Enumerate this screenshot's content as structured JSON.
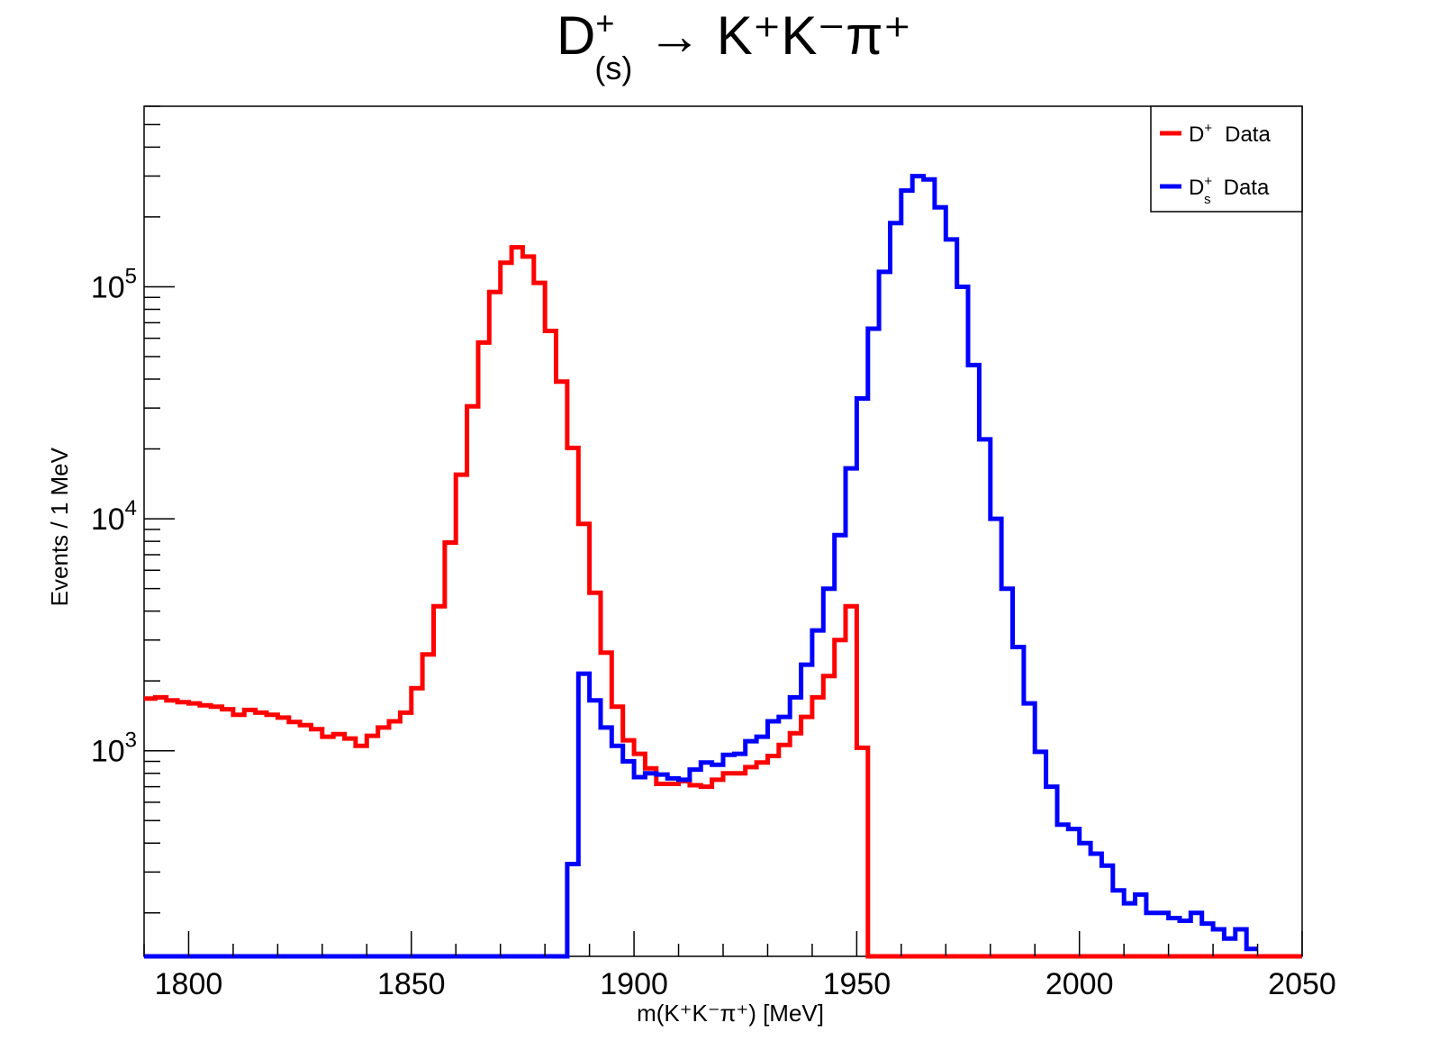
{
  "chart_data": {
    "type": "line",
    "subtype": "step-histogram",
    "title": {
      "main": "D",
      "sup": "+",
      "sub": "(s)",
      "rest": "→ K⁺K⁻π⁺"
    },
    "xlabel": "m(K⁺K⁻π⁺) [MeV]",
    "ylabel": "Events / 1 MeV",
    "xlim": [
      1790,
      2050
    ],
    "ylim": [
      130,
      600000
    ],
    "yscale": "log",
    "grid": false,
    "legend_position": "top-right",
    "x_ticks": [
      "1800",
      "1850",
      "1900",
      "1950",
      "2000",
      "2050"
    ],
    "y_ticks": [
      {
        "base": "10",
        "exp": "3",
        "value": 1000
      },
      {
        "base": "10",
        "exp": "4",
        "value": 10000
      },
      {
        "base": "10",
        "exp": "5",
        "value": 100000
      }
    ],
    "bin_width": 2.5,
    "series": [
      {
        "name": "D⁺  Data",
        "legend_main": "D",
        "legend_sup": "+",
        "legend_sub": "",
        "legend_rest": "Data",
        "color": "#ff0000",
        "x_start": 1790,
        "values": [
          1680,
          1700,
          1650,
          1620,
          1600,
          1570,
          1550,
          1510,
          1430,
          1500,
          1460,
          1430,
          1390,
          1330,
          1290,
          1240,
          1150,
          1180,
          1130,
          1050,
          1160,
          1260,
          1340,
          1460,
          1860,
          2600,
          4200,
          7900,
          15500,
          30500,
          57500,
          95000,
          127000,
          148000,
          135000,
          104000,
          64500,
          39000,
          20200,
          9500,
          4800,
          2650,
          1550,
          1110,
          970,
          840,
          720,
          720,
          740,
          710,
          700,
          750,
          800,
          800,
          850,
          890,
          950,
          1060,
          1190,
          1400,
          1700,
          2100,
          3000,
          4200,
          1030,
          130,
          130,
          130,
          130,
          130,
          130,
          130,
          130,
          130,
          130,
          130,
          130,
          130,
          130,
          130,
          130,
          130,
          130,
          130,
          130,
          130,
          130,
          130,
          130,
          130,
          130,
          130,
          130,
          130,
          130,
          130,
          130,
          130,
          130,
          130,
          130,
          130,
          130,
          130
        ]
      },
      {
        "name": "Dₛ⁺  Data",
        "legend_main": "D",
        "legend_sup": "+",
        "legend_sub": "s",
        "legend_rest": "Data",
        "color": "#0000ff",
        "x_start": 1790,
        "values": [
          130,
          130,
          130,
          130,
          130,
          130,
          130,
          130,
          130,
          130,
          130,
          130,
          130,
          130,
          130,
          130,
          130,
          130,
          130,
          130,
          130,
          130,
          130,
          130,
          130,
          130,
          130,
          130,
          130,
          130,
          130,
          130,
          130,
          130,
          130,
          130,
          130,
          130,
          325,
          2150,
          1650,
          1260,
          1050,
          900,
          770,
          800,
          790,
          760,
          750,
          830,
          890,
          870,
          960,
          970,
          1100,
          1150,
          1340,
          1400,
          1700,
          2350,
          3300,
          5000,
          8500,
          16500,
          33000,
          66000,
          116000,
          188000,
          260000,
          300000,
          290000,
          220000,
          160000,
          100000,
          46000,
          22000,
          10000,
          5000,
          2800,
          1600,
          990,
          700,
          480,
          460,
          400,
          360,
          320,
          250,
          220,
          240,
          200,
          200,
          190,
          185,
          200,
          180,
          170,
          155,
          170,
          140
        ]
      }
    ]
  }
}
